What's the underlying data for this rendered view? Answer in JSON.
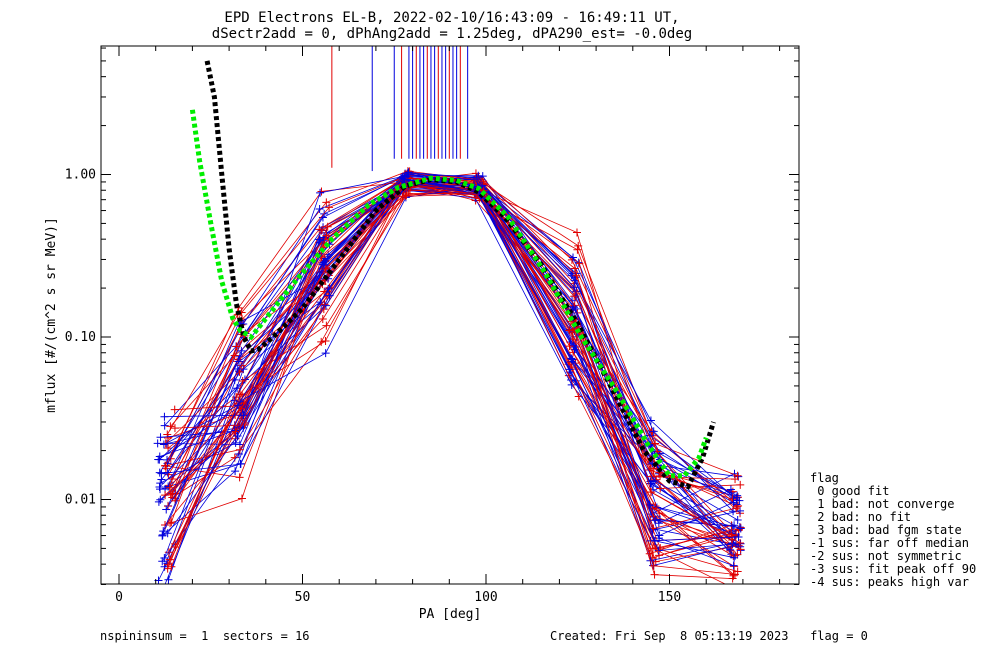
{
  "chart_data": {
    "type": "line",
    "title": "EPD Electrons EL-B, 2022-02-10/16:43:09 - 16:49:11 UT,",
    "subtitle": "dSectr2add = 0, dPhAng2add = 1.25deg, dPA290_est=  -0.0deg",
    "xlabel": "PA [deg]",
    "ylabel": "mflux [#/(cm^2 s sr MeV)]",
    "xlim": [
      -3,
      185
    ],
    "ylim": [
      0.003,
      6.0
    ],
    "yscale": "log",
    "x_ticks": [
      0,
      50,
      100,
      150
    ],
    "x_tick_labels": [
      "0",
      "50",
      "100",
      "150"
    ],
    "y_ticks": [
      0.01,
      0.1,
      1.0
    ],
    "y_tick_labels": [
      "0.01",
      "0.10",
      "1.00"
    ],
    "bundle_colors": {
      "red": "#e00000",
      "blue": "#0000dd"
    },
    "fit_curves": [
      {
        "color": "#000000",
        "style": "dotted",
        "points": [
          [
            24,
            5.0
          ],
          [
            26,
            3.0
          ],
          [
            28,
            1.0
          ],
          [
            30,
            0.35
          ],
          [
            32,
            0.16
          ],
          [
            34,
            0.1
          ],
          [
            36,
            0.082
          ],
          [
            38,
            0.084
          ],
          [
            42,
            0.1
          ],
          [
            50,
            0.15
          ],
          [
            60,
            0.3
          ],
          [
            70,
            0.6
          ],
          [
            78,
            0.85
          ],
          [
            85,
            0.93
          ],
          [
            92,
            0.9
          ],
          [
            98,
            0.78
          ],
          [
            105,
            0.55
          ],
          [
            115,
            0.28
          ],
          [
            125,
            0.12
          ],
          [
            135,
            0.045
          ],
          [
            143,
            0.02
          ],
          [
            150,
            0.013
          ],
          [
            155,
            0.012
          ],
          [
            159,
            0.018
          ],
          [
            162,
            0.03
          ]
        ]
      },
      {
        "color": "#00ee00",
        "style": "dotted",
        "points": [
          [
            20,
            2.5
          ],
          [
            22,
            1.2
          ],
          [
            25,
            0.5
          ],
          [
            28,
            0.22
          ],
          [
            31,
            0.13
          ],
          [
            33,
            0.11
          ],
          [
            36,
            0.1
          ],
          [
            40,
            0.13
          ],
          [
            48,
            0.22
          ],
          [
            58,
            0.4
          ],
          [
            68,
            0.65
          ],
          [
            76,
            0.83
          ],
          [
            85,
            0.95
          ],
          [
            92,
            0.92
          ],
          [
            98,
            0.82
          ],
          [
            106,
            0.55
          ],
          [
            116,
            0.25
          ],
          [
            126,
            0.1
          ],
          [
            136,
            0.045
          ],
          [
            144,
            0.022
          ],
          [
            150,
            0.014
          ],
          [
            154,
            0.014
          ],
          [
            158,
            0.018
          ],
          [
            160,
            0.024
          ]
        ]
      }
    ],
    "legend": {
      "position": "right-bottom",
      "title": "flag",
      "entries": [
        " 0 good fit",
        " 1 bad: not converge",
        " 2 bad: no fit",
        " 3 bad: bad fgm state",
        "-1 sus: far off median",
        "-2 sus: not symmetric",
        "-3 sus: fit peak off 90",
        "-4 sus: peaks high var"
      ]
    }
  },
  "footer": {
    "left": "nspininsum =  1  sectors = 16",
    "right": "Created: Fri Sep  8 05:13:19 2023   flag = 0"
  }
}
